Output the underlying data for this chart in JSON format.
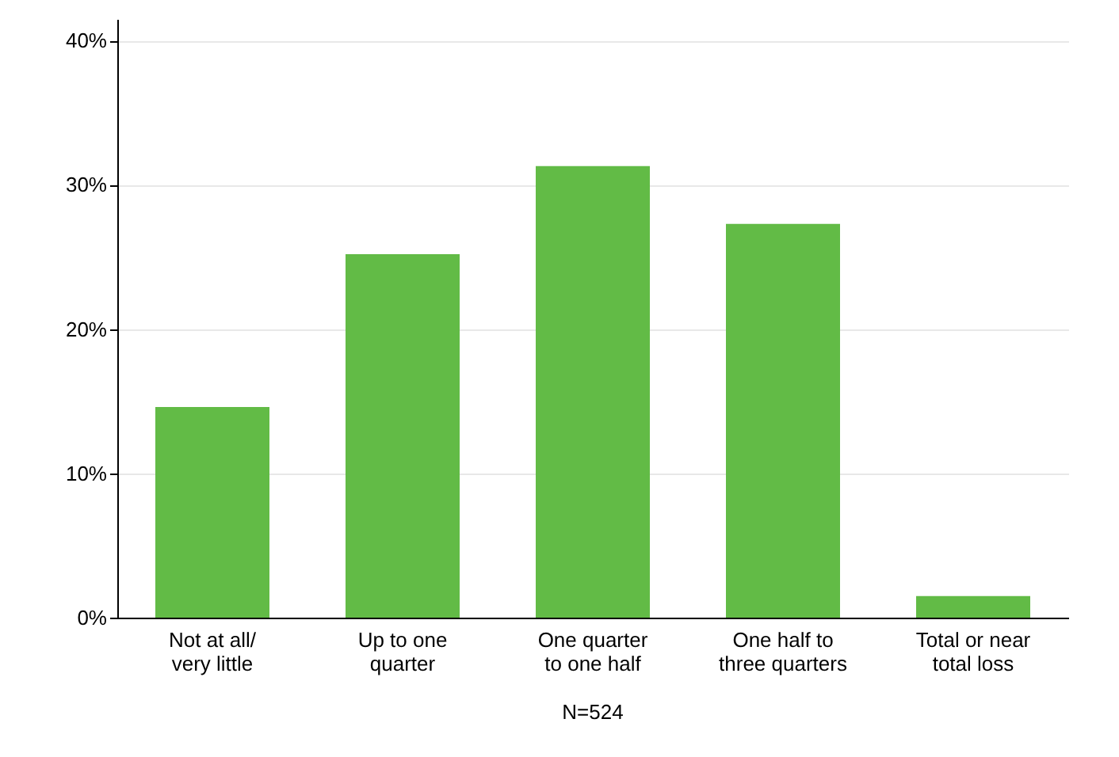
{
  "chart_data": {
    "type": "bar",
    "categories": [
      "Not at all/\nvery little",
      "Up to one\nquarter",
      "One quarter\nto one half",
      "One half to\nthree quarters",
      "Total or near\ntotal loss"
    ],
    "values": [
      14.6,
      25.2,
      31.3,
      27.3,
      1.5
    ],
    "color": "#62bb46",
    "ylim": [
      0,
      41.5
    ],
    "yticks": [
      {
        "value": 0,
        "label": "0%"
      },
      {
        "value": 10,
        "label": "10%"
      },
      {
        "value": 20,
        "label": "20%"
      },
      {
        "value": 30,
        "label": "30%"
      },
      {
        "value": 40,
        "label": "40%"
      }
    ],
    "grid": "y",
    "annotations": [
      "N=524"
    ]
  }
}
